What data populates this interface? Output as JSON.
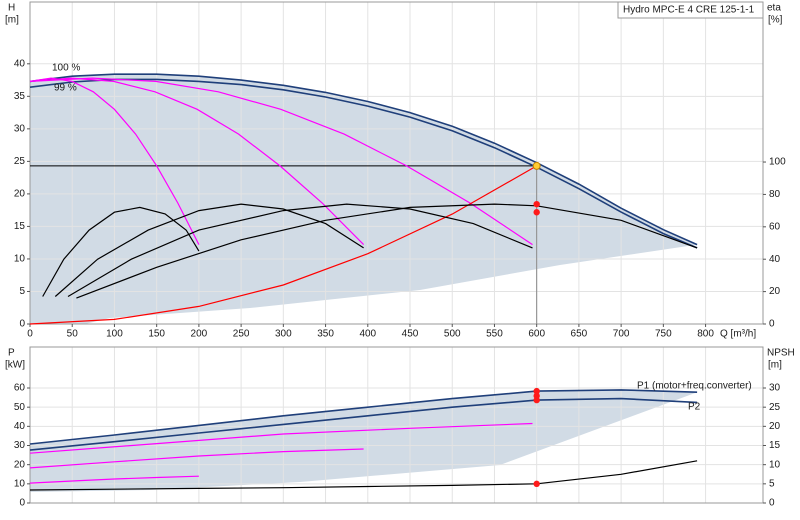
{
  "chart_data": [
    {
      "type": "line",
      "title": "Hydro MPC-E 4 CRE 125-1-1",
      "ylabel": "H",
      "yunit": "[m]",
      "y2label": "eta",
      "y2unit": "[%]",
      "xlabel": "Q [m³/h]",
      "xlim": [
        0,
        868
      ],
      "xticks": [
        0,
        50,
        100,
        150,
        200,
        250,
        300,
        350,
        400,
        450,
        500,
        550,
        600,
        650,
        700,
        750,
        800
      ],
      "ylim": [
        0,
        49.5
      ],
      "yticks": [
        0,
        5,
        10,
        15,
        20,
        25,
        30,
        35,
        40
      ],
      "y2lim": [
        0,
        198.8
      ],
      "y2ticks": [
        0,
        20,
        40,
        60,
        80,
        100
      ],
      "grid": true,
      "series": [
        {
          "name": "100 %",
          "color": "#1f3f7a",
          "x": [
            0,
            50,
            100,
            150,
            200,
            250,
            300,
            350,
            400,
            450,
            500,
            550,
            600,
            650,
            700,
            750,
            790
          ],
          "values": [
            37.3,
            38.1,
            38.4,
            38.4,
            38.1,
            37.5,
            36.7,
            35.6,
            34.2,
            32.5,
            30.4,
            27.8,
            24.8,
            21.5,
            17.8,
            14.5,
            12.2
          ]
        },
        {
          "name": "99 %",
          "color": "#1f3f7a",
          "x": [
            0,
            50,
            100,
            150,
            200,
            250,
            300,
            350,
            400,
            450,
            500,
            550,
            600,
            650,
            700,
            750,
            790
          ],
          "values": [
            36.4,
            37.2,
            37.6,
            37.6,
            37.3,
            36.8,
            36.0,
            34.9,
            33.5,
            31.8,
            29.7,
            27.1,
            24.1,
            20.8,
            17.2,
            13.9,
            11.7
          ]
        },
        {
          "color": "#ff00ff",
          "x": [
            0,
            25,
            50,
            75,
            100,
            125,
            150,
            175,
            200
          ],
          "values": [
            37.3,
            37.8,
            37.3,
            35.7,
            33,
            29.2,
            24.3,
            18.6,
            12.2
          ]
        },
        {
          "color": "#ff00ff",
          "x": [
            0,
            49,
            99,
            148,
            198,
            247,
            296,
            346,
            395
          ],
          "values": [
            37.3,
            37.8,
            37.3,
            35.7,
            33,
            29.2,
            24.3,
            18.6,
            12.2
          ]
        },
        {
          "color": "#ff00ff",
          "x": [
            0,
            74,
            149,
            223,
            297,
            372,
            446,
            521,
            595
          ],
          "values": [
            37.3,
            37.8,
            37.3,
            35.7,
            33,
            29.2,
            24.3,
            18.6,
            12.2
          ]
        },
        {
          "color": "#ff0000",
          "x": [
            0,
            100,
            200,
            300,
            400,
            500,
            600
          ],
          "values": [
            0,
            0.7,
            2.7,
            6,
            10.8,
            16.9,
            24.3
          ]
        },
        {
          "color": "#000000",
          "axis": "y2",
          "x": [
            15,
            40,
            70,
            100,
            130,
            160,
            185,
            200
          ],
          "values": [
            17,
            40,
            58,
            69,
            72,
            68,
            58,
            45
          ]
        },
        {
          "color": "#000000",
          "axis": "y2",
          "x": [
            30,
            80,
            140,
            200,
            250,
            300,
            350,
            395
          ],
          "values": [
            17,
            40,
            58,
            70,
            74,
            71,
            62,
            47
          ]
        },
        {
          "color": "#000000",
          "axis": "y2",
          "x": [
            45,
            120,
            200,
            300,
            375,
            450,
            525,
            595
          ],
          "values": [
            17,
            40,
            58,
            70,
            74,
            71,
            62,
            47
          ]
        },
        {
          "color": "#000000",
          "axis": "y2",
          "x": [
            55,
            150,
            250,
            350,
            450,
            550,
            600,
            700,
            790
          ],
          "values": [
            16,
            35,
            52,
            64,
            72,
            74,
            73,
            64,
            47
          ]
        }
      ],
      "duty_point": {
        "x": 600,
        "y": 24.3
      },
      "points": [
        {
          "x": 600,
          "y": 74,
          "axis": "y2"
        },
        {
          "x": 600,
          "y": 69,
          "axis": "y2"
        }
      ]
    },
    {
      "type": "line",
      "ylabel": "P",
      "yunit": "[kW]",
      "y2label": "NPSH",
      "y2unit": "[m]",
      "xlim": [
        0,
        868
      ],
      "xticks": [
        0,
        50,
        100,
        150,
        200,
        250,
        300,
        350,
        400,
        450,
        500,
        550,
        600,
        650,
        700,
        750,
        800
      ],
      "ylim": [
        0,
        81.4
      ],
      "yticks": [
        0,
        10,
        20,
        30,
        40,
        50,
        60
      ],
      "y2lim": [
        0,
        40.7
      ],
      "y2ticks": [
        0,
        5,
        10,
        15,
        20,
        25,
        30
      ],
      "grid": true,
      "series": [
        {
          "name": "P1 (motor+freq.converter)",
          "color": "#1f3f7a",
          "x": [
            0,
            100,
            200,
            300,
            400,
            500,
            600,
            700,
            790
          ],
          "values": [
            30.8,
            35.5,
            40.5,
            45.5,
            50,
            54.5,
            58.4,
            59,
            57.8
          ]
        },
        {
          "name": "P2",
          "color": "#1f3f7a",
          "x": [
            0,
            100,
            200,
            300,
            400,
            500,
            600,
            700,
            790
          ],
          "values": [
            27.6,
            32,
            36.5,
            41,
            45.5,
            50,
            53.7,
            54.5,
            52.5
          ]
        },
        {
          "color": "#ff00ff",
          "x": [
            0,
            50,
            100,
            150,
            200
          ],
          "values": [
            10.4,
            11.5,
            12.5,
            13.3,
            14
          ]
        },
        {
          "color": "#ff00ff",
          "x": [
            0,
            100,
            200,
            300,
            395
          ],
          "values": [
            18.3,
            21.5,
            24.5,
            26.8,
            28.2
          ]
        },
        {
          "color": "#ff00ff",
          "x": [
            0,
            150,
            300,
            450,
            595
          ],
          "values": [
            26,
            31,
            36,
            39,
            41.5
          ]
        },
        {
          "color": "#000000",
          "axis": "y2",
          "x": [
            0,
            100,
            200,
            300,
            400,
            500,
            600,
            700,
            790
          ],
          "values": [
            3.4,
            3.6,
            3.8,
            4,
            4.3,
            4.6,
            5,
            7.5,
            11
          ]
        }
      ],
      "points": [
        {
          "x": 600,
          "y": 58.4
        },
        {
          "x": 600,
          "y": 55.9
        },
        {
          "x": 600,
          "y": 53.7
        },
        {
          "x": 600,
          "y": 5,
          "axis": "y2"
        }
      ]
    }
  ]
}
